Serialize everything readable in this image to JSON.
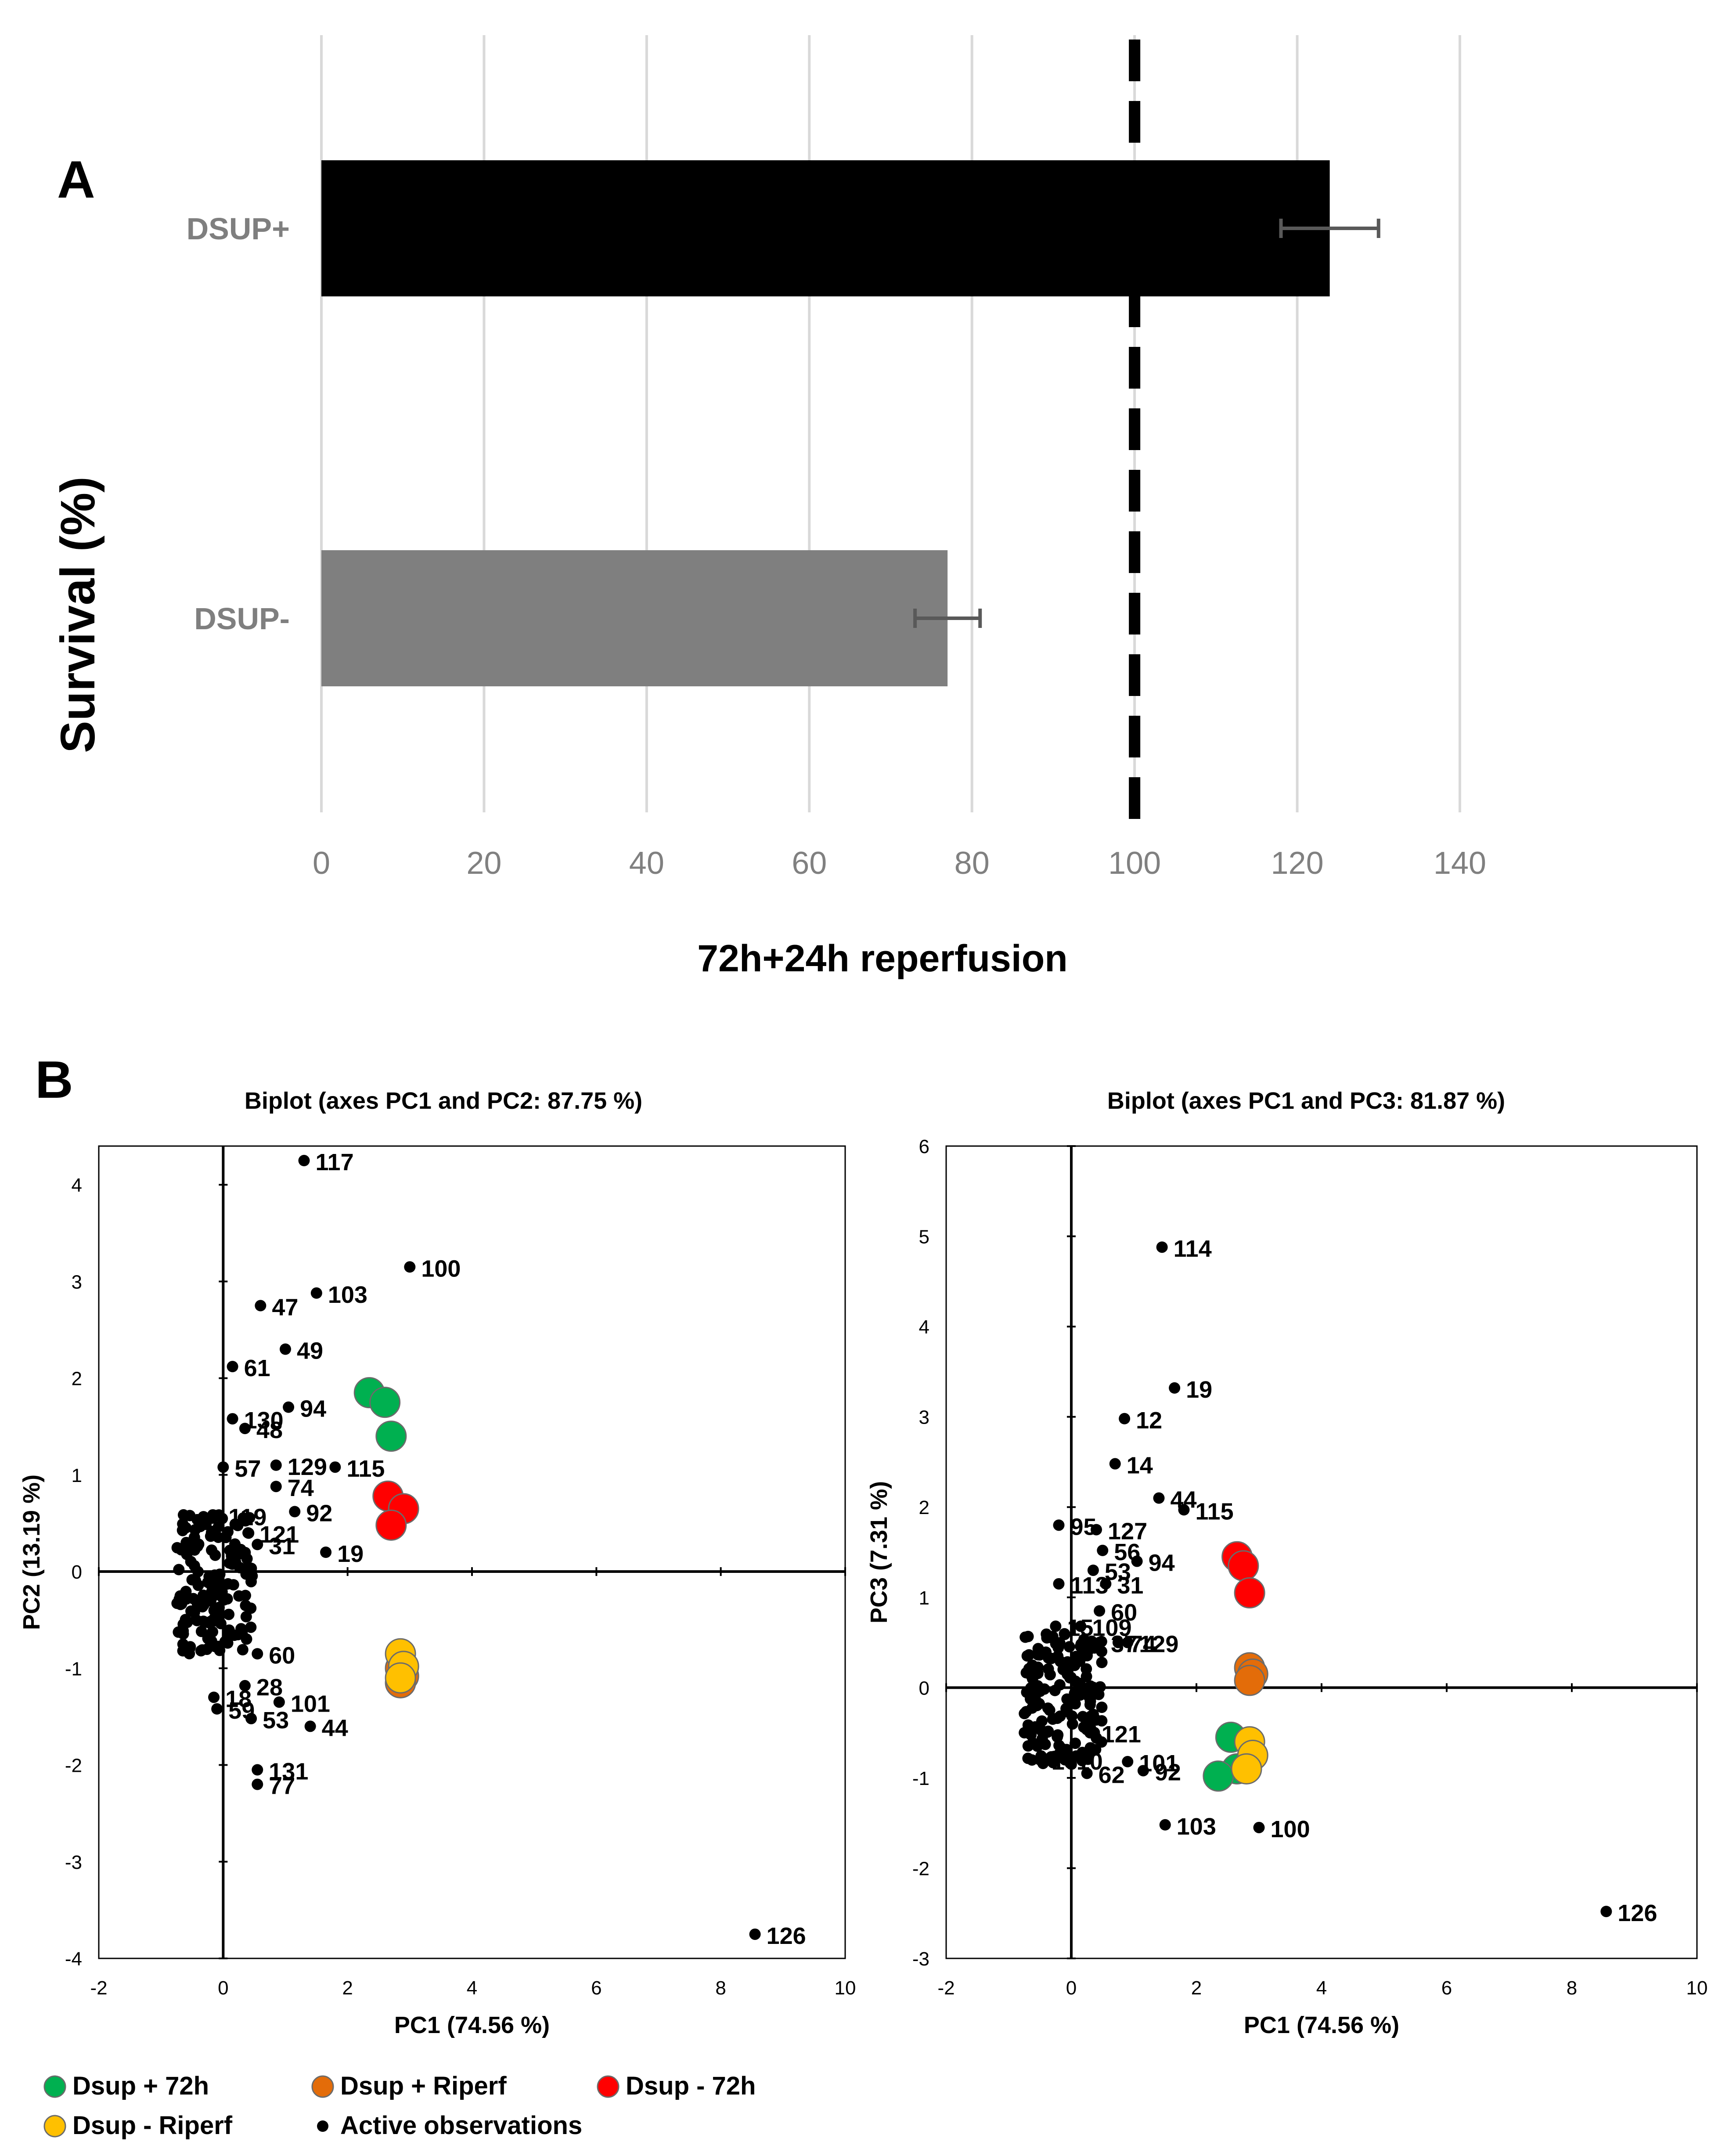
{
  "panels": {
    "a_label": "A",
    "b_label": "B"
  },
  "colors": {
    "dsup_plus_bar": "#000000",
    "dsup_minus_bar": "#7f7f7f",
    "grid": "#d9d9d9",
    "dsup_plus_72h": "#00b050",
    "dsup_plus_riperf": "#e36c09",
    "dsup_minus_72h": "#ff0000",
    "dsup_minus_riperf": "#ffc000",
    "active": "#000000"
  },
  "legend": {
    "items": [
      {
        "label": "Dsup + 72h",
        "color": "#00b050"
      },
      {
        "label": "Dsup + Riperf",
        "color": "#e36c09"
      },
      {
        "label": "Dsup - 72h",
        "color": "#ff0000"
      },
      {
        "label": "Dsup - Riperf",
        "color": "#ffc000"
      },
      {
        "label": "Active observations",
        "color": "#000000"
      }
    ]
  },
  "chart_data": [
    {
      "id": "survival",
      "type": "bar",
      "orientation": "horizontal",
      "ylabel": "Survival (%)",
      "xlabel": "72h+24h reperfusion",
      "categories": [
        "DSUP+",
        "DSUP-"
      ],
      "values": [
        124,
        77
      ],
      "errors": [
        6,
        4
      ],
      "reference_line": 100,
      "xlim": [
        0,
        140
      ],
      "xticks": [
        0,
        20,
        40,
        60,
        80,
        100,
        120,
        140
      ]
    },
    {
      "id": "biplot-pc1-pc2",
      "type": "scatter",
      "title": "Biplot (axes PC1 and PC2: 87.75 %)",
      "xlabel": "PC1 (74.56 %)",
      "ylabel": "PC2 (13.19 %)",
      "xlim": [
        -2,
        10
      ],
      "ylim": [
        -4,
        4.4
      ],
      "xticks": [
        -2,
        0,
        2,
        4,
        6,
        8,
        10
      ],
      "yticks": [
        -4,
        -3,
        -2,
        -1,
        0,
        1,
        2,
        3,
        4
      ],
      "labeled_points": [
        {
          "label": "117",
          "x": 1.3,
          "y": 4.25
        },
        {
          "label": "100",
          "x": 3.0,
          "y": 3.15
        },
        {
          "label": "103",
          "x": 1.5,
          "y": 2.88
        },
        {
          "label": "47",
          "x": 0.6,
          "y": 2.75
        },
        {
          "label": "49",
          "x": 1.0,
          "y": 2.3
        },
        {
          "label": "61",
          "x": 0.15,
          "y": 2.12
        },
        {
          "label": "94",
          "x": 1.05,
          "y": 1.7
        },
        {
          "label": "130",
          "x": 0.15,
          "y": 1.58
        },
        {
          "label": "48",
          "x": 0.35,
          "y": 1.48
        },
        {
          "label": "57",
          "x": 0.0,
          "y": 1.08
        },
        {
          "label": "129",
          "x": 0.85,
          "y": 1.1
        },
        {
          "label": "115",
          "x": 1.8,
          "y": 1.08
        },
        {
          "label": "74",
          "x": 0.85,
          "y": 0.88
        },
        {
          "label": "92",
          "x": 1.15,
          "y": 0.62
        },
        {
          "label": "119",
          "x": -0.1,
          "y": 0.58
        },
        {
          "label": "121",
          "x": 0.4,
          "y": 0.4
        },
        {
          "label": "31",
          "x": 0.55,
          "y": 0.28
        },
        {
          "label": "19",
          "x": 1.65,
          "y": 0.2
        },
        {
          "label": "60",
          "x": 0.55,
          "y": -0.85
        },
        {
          "label": "28",
          "x": 0.35,
          "y": -1.18
        },
        {
          "label": "101",
          "x": 0.9,
          "y": -1.35
        },
        {
          "label": "18",
          "x": -0.15,
          "y": -1.3
        },
        {
          "label": "59",
          "x": -0.1,
          "y": -1.42
        },
        {
          "label": "53",
          "x": 0.45,
          "y": -1.52
        },
        {
          "label": "44",
          "x": 1.4,
          "y": -1.6
        },
        {
          "label": "131",
          "x": 0.55,
          "y": -2.05
        },
        {
          "label": "77",
          "x": 0.55,
          "y": -2.2
        },
        {
          "label": "126",
          "x": 8.55,
          "y": -3.75
        }
      ],
      "groups": [
        {
          "name": "Dsup + 72h",
          "points": [
            [
              2.35,
              1.85
            ],
            [
              2.6,
              1.75
            ],
            [
              2.7,
              1.4
            ]
          ]
        },
        {
          "name": "Dsup - 72h",
          "points": [
            [
              2.65,
              0.78
            ],
            [
              2.9,
              0.65
            ],
            [
              2.7,
              0.48
            ]
          ]
        },
        {
          "name": "Dsup + Riperf",
          "points": [
            [
              2.85,
              -1.0
            ],
            [
              2.9,
              -1.08
            ],
            [
              2.85,
              -1.15
            ]
          ]
        },
        {
          "name": "Dsup - Riperf",
          "points": [
            [
              2.85,
              -0.85
            ],
            [
              2.9,
              -0.98
            ],
            [
              2.85,
              -1.1
            ]
          ]
        }
      ]
    },
    {
      "id": "biplot-pc1-pc3",
      "type": "scatter",
      "title": "Biplot (axes PC1 and PC3: 81.87 %)",
      "xlabel": "PC1 (74.56 %)",
      "ylabel": "PC3 (7.31 %)",
      "xlim": [
        -2,
        10
      ],
      "ylim": [
        -3,
        6
      ],
      "xticks": [
        -2,
        0,
        2,
        4,
        6,
        8,
        10
      ],
      "yticks": [
        -3,
        -2,
        -1,
        0,
        1,
        2,
        3,
        4,
        5,
        6
      ],
      "labeled_points": [
        {
          "label": "114",
          "x": 1.45,
          "y": 4.88
        },
        {
          "label": "19",
          "x": 1.65,
          "y": 3.32
        },
        {
          "label": "12",
          "x": 0.85,
          "y": 2.98
        },
        {
          "label": "14",
          "x": 0.7,
          "y": 2.48
        },
        {
          "label": "44",
          "x": 1.4,
          "y": 2.1
        },
        {
          "label": "115",
          "x": 1.8,
          "y": 1.97
        },
        {
          "label": "95",
          "x": -0.2,
          "y": 1.8
        },
        {
          "label": "127",
          "x": 0.4,
          "y": 1.75
        },
        {
          "label": "56",
          "x": 0.5,
          "y": 1.52
        },
        {
          "label": "94",
          "x": 1.05,
          "y": 1.4
        },
        {
          "label": "53",
          "x": 0.35,
          "y": 1.3
        },
        {
          "label": "113",
          "x": -0.2,
          "y": 1.15
        },
        {
          "label": "31",
          "x": 0.55,
          "y": 1.15
        },
        {
          "label": "60",
          "x": 0.45,
          "y": 0.85
        },
        {
          "label": "15",
          "x": -0.25,
          "y": 0.68
        },
        {
          "label": "109",
          "x": 0.15,
          "y": 0.68
        },
        {
          "label": "37",
          "x": 0.45,
          "y": 0.5
        },
        {
          "label": "74",
          "x": 0.75,
          "y": 0.5
        },
        {
          "label": "129",
          "x": 0.9,
          "y": 0.5
        },
        {
          "label": "121",
          "x": 0.3,
          "y": -0.5
        },
        {
          "label": "16",
          "x": -0.5,
          "y": -0.8
        },
        {
          "label": "10",
          "x": -0.1,
          "y": -0.8
        },
        {
          "label": "62",
          "x": 0.25,
          "y": -0.95
        },
        {
          "label": "101",
          "x": 0.9,
          "y": -0.82
        },
        {
          "label": "92",
          "x": 1.15,
          "y": -0.92
        },
        {
          "label": "103",
          "x": 1.5,
          "y": -1.52
        },
        {
          "label": "100",
          "x": 3.0,
          "y": -1.55
        },
        {
          "label": "126",
          "x": 8.55,
          "y": -2.48
        }
      ],
      "groups": [
        {
          "name": "Dsup - 72h",
          "points": [
            [
              2.65,
              1.45
            ],
            [
              2.75,
              1.35
            ],
            [
              2.85,
              1.05
            ]
          ]
        },
        {
          "name": "Dsup + Riperf",
          "points": [
            [
              2.85,
              0.22
            ],
            [
              2.9,
              0.15
            ],
            [
              2.85,
              0.08
            ]
          ]
        },
        {
          "name": "Dsup + 72h",
          "points": [
            [
              2.55,
              -0.55
            ],
            [
              2.65,
              -0.9
            ],
            [
              2.35,
              -0.98
            ]
          ]
        },
        {
          "name": "Dsup - Riperf",
          "points": [
            [
              2.85,
              -0.6
            ],
            [
              2.9,
              -0.75
            ],
            [
              2.8,
              -0.9
            ]
          ]
        }
      ]
    }
  ]
}
